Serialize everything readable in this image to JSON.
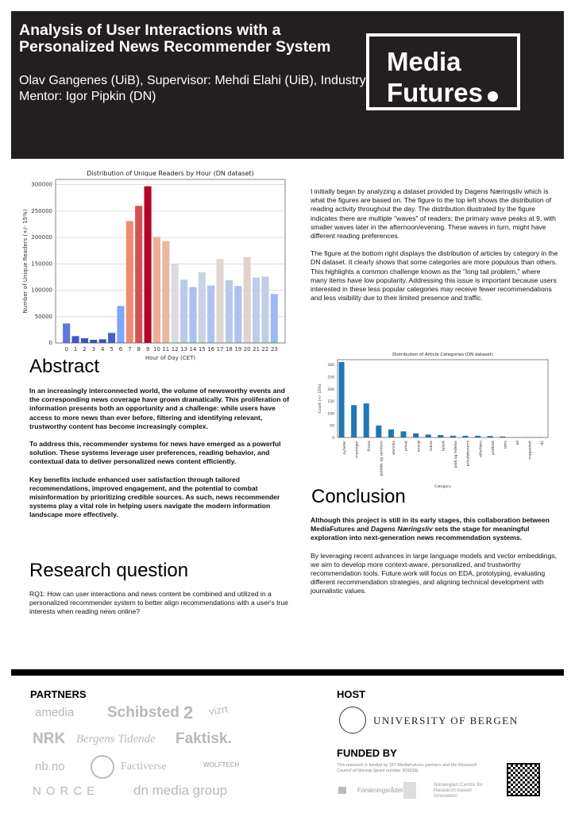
{
  "header": {
    "title": "Analysis of User Interactions with a Personalized News Recommender System",
    "authors": "Olav Gangenes (UiB), Supervisor: Mehdi Elahi (UiB), Industry Mentor: Igor Pipkin (DN)",
    "logo_line1": "Media",
    "logo_line2": "Futures"
  },
  "intro": [
    "I initially began by analyzing a dataset provided by Dagens Næringsliv which is what the figures are based on. The figure to the top left shows the distribution of reading activity throughout the day. The distribution illustrated by the figure indicates there are multiple \"waves\" of readers; the primary wave peaks at 9, with smaller waves later in the afternoon/evening. These waves in turn, might have different reading preferences.",
    "The figure at the bottom right displays the distribution of articles by category in the DN dataset. It clearly shows that some categories are more populous than others. This highlights a common challenge known as the \"long tail problem,\" where many items have low popularity. Addressing this issue is important because users interested in these less popular categories may receive fewer recommendations and less visibility due to their limited presence and traffic."
  ],
  "abstract": {
    "heading": "Abstract",
    "paragraphs": [
      "In an increasingly interconnected world, the volume of newsworthy events and the corresponding news coverage have grown dramatically. This proliferation of information presents both an opportunity and a challenge: while users have access to more news than ever before, filtering and identifying relevant, trustworthy content has become increasingly complex.",
      "To address this, recommender systems for news have emerged as a powerful solution. These systems leverage user preferences, reading behavior, and contextual data to deliver personalized news content efficiently.",
      "Key benefits include enhanced user satisfaction through tailored recommendations, improved engagement, and the potential to combat misinformation by prioritizing credible sources. As such, news recommender systems play a vital role in helping users navigate the modern information landscape more effectively."
    ]
  },
  "research": {
    "heading": "Research question",
    "text": "RQ1: How can user interactions and news content be combined and utilized in a personalized recommender system to better align recommendations with a user's true interests when reading news online?"
  },
  "conclusion": {
    "heading": "Conclusion",
    "p1_a": "Although this project is still in its early stages, this collaboration between MediaFutures and ",
    "p1_em": "Dagens Næringsliv",
    "p1_b": " sets the stage for meaningful exploration into next-generation news recommendation systems.",
    "p2": "By leveraging recent advances in large language models and vector embeddings, we aim to develop more context-aware, personalized, and trustworthy recommendation tools. Future work will focus on EDA, prototyping, evaluating different recommendation strategies, and aligning technical development with journalistic values."
  },
  "footer": {
    "partners_heading": "PARTNERS",
    "partners": [
      "amedia",
      "Schibsted",
      "2",
      "vizrt",
      "NRK",
      "Bergens Tidende",
      "Faktisk.",
      "nb.no",
      "Factiverse",
      "WOLFTECH",
      "NORCE",
      "dn media group"
    ],
    "host_heading": "HOST",
    "host": "UNIVERSITY OF BERGEN",
    "funded_heading": "FUNDED BY",
    "funded_text": "This research is funded by SFI MediaFutures partners and the Research Council of Norway (grant number 309339).",
    "funders": [
      "Forskningsrådet",
      "Norwegian Centre for Research-based Innovation"
    ]
  },
  "chart_data": [
    {
      "type": "bar",
      "title": "Distribution of Unique Readers by Hour (DN dataset)",
      "xlabel": "Hour of Day (CET)",
      "ylabel": "Number of Unique Readers (+/- 15%)",
      "ylim": [
        0,
        310000
      ],
      "yticks": [
        0,
        50000,
        100000,
        150000,
        200000,
        250000,
        300000
      ],
      "grid": "horizontal",
      "colormap": "coolwarm",
      "categories": [
        "0",
        "1",
        "2",
        "3",
        "4",
        "5",
        "6",
        "7",
        "8",
        "9",
        "10",
        "11",
        "12",
        "13",
        "14",
        "15",
        "16",
        "17",
        "18",
        "19",
        "20",
        "21",
        "22",
        "23"
      ],
      "values": [
        37000,
        13000,
        9000,
        6000,
        7000,
        19000,
        70000,
        231000,
        260000,
        297000,
        201000,
        193000,
        150000,
        120000,
        106000,
        134000,
        109000,
        159000,
        119000,
        108000,
        163000,
        124000,
        126000,
        93000
      ]
    },
    {
      "type": "bar",
      "title": "Distribution of Article Categories (DN dataset)",
      "xlabel": "Category",
      "ylabel": "Count (+/- 15%)",
      "ylim": [
        0,
        320
      ],
      "yticks": [
        0,
        50,
        100,
        150,
        200,
        250,
        300
      ],
      "color": "#1f77b4",
      "categories": [
        "nyheter",
        "meninger",
        "finans",
        "politikk og samfunn",
        "utenriks",
        "privat",
        "energi",
        "tekno",
        "talent",
        "jobb og ledelse",
        "privatøkonomi",
        "etterbørs",
        "podkast",
        "børs",
        "bil",
        "magasinet",
        "d2"
      ],
      "values": [
        310,
        133,
        140,
        49,
        33,
        25,
        17,
        12,
        10,
        7,
        7,
        7,
        6,
        4,
        1,
        1,
        1
      ]
    }
  ]
}
